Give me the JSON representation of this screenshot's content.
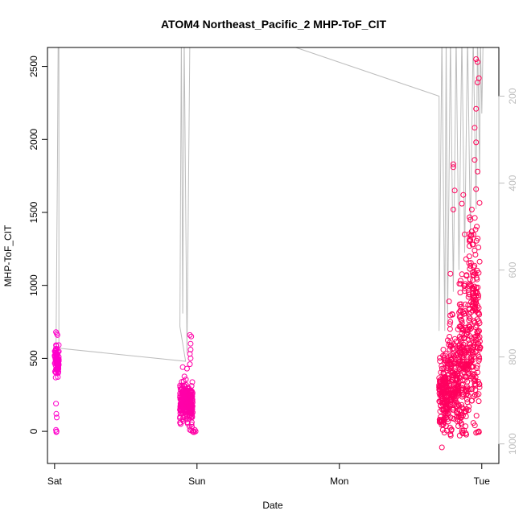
{
  "chart_data": {
    "type": "scatter",
    "title": "ATOM4 Northeast_Pacific_2 MHP-ToF_CIT",
    "xlabel": "Date",
    "ylabel": "MHP-ToF_CIT",
    "x_ticks": [
      {
        "label": "Sat",
        "day": 0
      },
      {
        "label": "Sun",
        "day": 1
      },
      {
        "label": "Mon",
        "day": 2
      },
      {
        "label": "Tue",
        "day": 3
      }
    ],
    "xlim_days": [
      -0.05,
      3.12
    ],
    "ylim": [
      -220,
      2630
    ],
    "y_ticks": [
      0,
      500,
      1000,
      1500,
      2000,
      2500
    ],
    "y2_label": "",
    "y2_ticks": [
      200,
      400,
      600,
      800,
      1000
    ],
    "y2lim": [
      88,
      1045
    ],
    "y2_reversed": true,
    "colors": {
      "points_start": "#ff00cc",
      "points_end": "#ff0055",
      "pressure_line": "#bdbdbd",
      "axes": "#000000",
      "y2_axis": "#bdbdbd"
    },
    "series": [
      {
        "kind": "pressure_trace",
        "axis": "y2",
        "points": [
          [
            0.01,
            790
          ],
          [
            0.02,
            360
          ],
          [
            0.025,
            60
          ],
          [
            0.03,
            40
          ],
          [
            0.03,
            780
          ],
          [
            0.92,
            810
          ],
          [
            0.88,
            730
          ],
          [
            0.89,
            60
          ],
          [
            0.9,
            700
          ],
          [
            0.91,
            60
          ],
          [
            0.93,
            790
          ],
          [
            0.95,
            60
          ],
          [
            1.2,
            80
          ],
          [
            1.55,
            72
          ],
          [
            2.7,
            200
          ],
          [
            2.7,
            740
          ],
          [
            2.72,
            60
          ],
          [
            2.74,
            740
          ],
          [
            2.75,
            60
          ],
          [
            2.76,
            720
          ],
          [
            2.78,
            60
          ],
          [
            2.8,
            650
          ],
          [
            2.82,
            60
          ],
          [
            2.84,
            600
          ],
          [
            2.86,
            60
          ],
          [
            2.88,
            560
          ],
          [
            2.9,
            60
          ],
          [
            2.92,
            520
          ],
          [
            2.94,
            60
          ],
          [
            2.96,
            460
          ],
          [
            2.97,
            60
          ],
          [
            2.985,
            380
          ],
          [
            2.99,
            60
          ],
          [
            3.0,
            240
          ],
          [
            3.01,
            60
          ]
        ]
      },
      {
        "kind": "clusters",
        "axis": "y",
        "clusters": [
          {
            "x0": 0.0,
            "x1": 0.03,
            "n": 90,
            "center": 480,
            "spread": 80,
            "extra": [
              [
                0.01,
                680
              ],
              [
                0.015,
                670
              ],
              [
                0.02,
                660
              ],
              [
                0.01,
                190
              ],
              [
                0.012,
                120
              ],
              [
                0.015,
                95
              ],
              [
                0.01,
                10
              ],
              [
                0.012,
                -5
              ],
              [
                0.014,
                0
              ]
            ]
          },
          {
            "x0": 0.88,
            "x1": 0.97,
            "n": 260,
            "center": 200,
            "spread": 110,
            "extra": [
              [
                0.95,
                660
              ],
              [
                0.96,
                650
              ],
              [
                0.955,
                600
              ],
              [
                0.955,
                560
              ],
              [
                0.95,
                530
              ],
              [
                0.955,
                500
              ],
              [
                0.95,
                460
              ],
              [
                0.93,
                430
              ],
              [
                0.9,
                440
              ],
              [
                0.95,
                10
              ],
              [
                0.96,
                5
              ],
              [
                0.97,
                0
              ],
              [
                0.98,
                -5
              ],
              [
                0.99,
                0
              ],
              [
                0.985,
                10
              ],
              [
                0.975,
                -5
              ]
            ]
          },
          {
            "x0": 2.7,
            "x1": 2.76,
            "n": 160,
            "center": 250,
            "spread": 200,
            "extra": [
              [
                2.72,
                -110
              ],
              [
                2.73,
                560
              ],
              [
                2.74,
                520
              ]
            ]
          },
          {
            "x0": 2.76,
            "x1": 2.84,
            "n": 170,
            "center": 350,
            "spread": 300,
            "extra": [
              [
                2.8,
                1830
              ],
              [
                2.8,
                1810
              ],
              [
                2.81,
                1650
              ],
              [
                2.8,
                1520
              ],
              [
                2.78,
                1080
              ],
              [
                2.77,
                890
              ],
              [
                2.78,
                -20
              ]
            ]
          },
          {
            "x0": 2.84,
            "x1": 2.91,
            "n": 170,
            "center": 500,
            "spread": 420,
            "extra": [
              [
                2.87,
                1620
              ],
              [
                2.86,
                1560
              ],
              [
                2.88,
                1350
              ],
              [
                2.89,
                1180
              ]
            ]
          },
          {
            "x0": 2.91,
            "x1": 2.99,
            "n": 190,
            "center": 750,
            "spread": 560,
            "extra": [
              [
                2.96,
                2550
              ],
              [
                2.97,
                2530
              ],
              [
                2.98,
                2420
              ],
              [
                2.97,
                2390
              ],
              [
                2.96,
                2210
              ],
              [
                2.95,
                2080
              ],
              [
                2.96,
                1980
              ],
              [
                2.95,
                1860
              ],
              [
                2.97,
                1780
              ],
              [
                2.96,
                1660
              ],
              [
                2.93,
                1520
              ],
              [
                2.92,
                1450
              ],
              [
                2.93,
                1370
              ],
              [
                2.94,
                1280
              ],
              [
                2.95,
                1240
              ],
              [
                2.96,
                -10
              ],
              [
                2.97,
                -5
              ]
            ]
          }
        ]
      }
    ],
    "grid": false,
    "legend": "none"
  }
}
